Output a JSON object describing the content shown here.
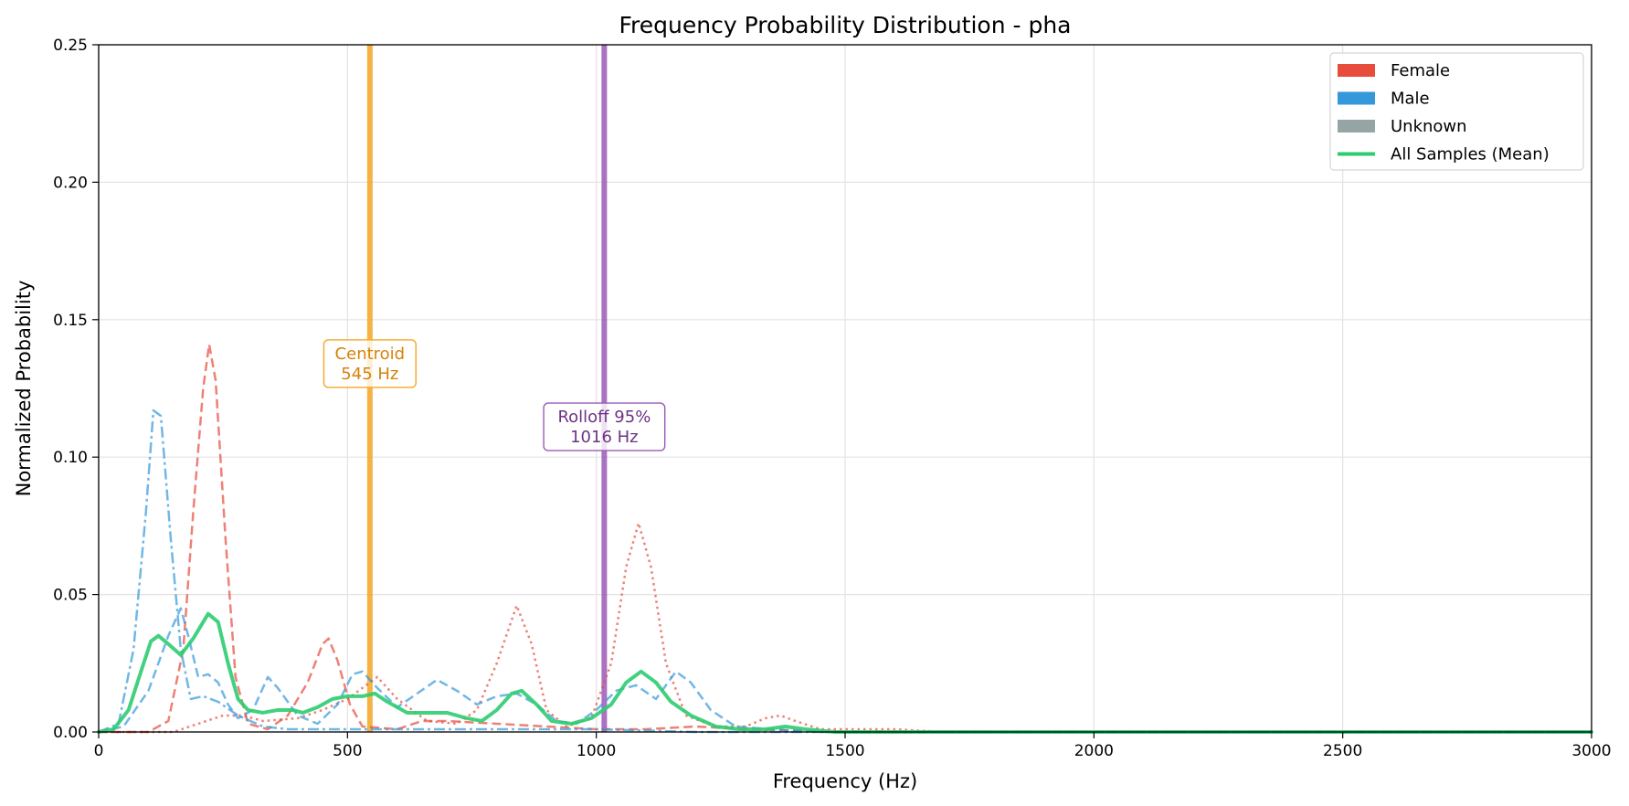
{
  "chart_data": {
    "type": "line",
    "title": "Frequency Probability Distribution - pha",
    "xlabel": "Frequency (Hz)",
    "ylabel": "Normalized Probability",
    "xlim": [
      0,
      3000
    ],
    "ylim": [
      0,
      0.25
    ],
    "xticks": [
      0,
      500,
      1000,
      1500,
      2000,
      2500,
      3000
    ],
    "xtick_labels": [
      "0",
      "500",
      "1000",
      "1500",
      "2000",
      "2500",
      "3000"
    ],
    "yticks": [
      0,
      0.05,
      0.1,
      0.15,
      0.2,
      0.25
    ],
    "ytick_labels": [
      "0.00",
      "0.05",
      "0.10",
      "0.15",
      "0.20",
      "0.25"
    ],
    "grid": true,
    "legend_position": "top-right",
    "legend": [
      {
        "label": "Female",
        "kind": "patch",
        "color": "#e74c3c"
      },
      {
        "label": "Male",
        "kind": "patch",
        "color": "#3498db"
      },
      {
        "label": "Unknown",
        "kind": "patch",
        "color": "#95a5a6"
      },
      {
        "label": "All Samples (Mean)",
        "kind": "line",
        "color": "#2ecc71"
      }
    ],
    "vlines": [
      {
        "x": 545,
        "color": "#f5a623",
        "text_color": "#d4830b",
        "label_lines": [
          "Centroid",
          "545 Hz"
        ],
        "label_y": 0.134
      },
      {
        "x": 1016,
        "color": "#9b59b6",
        "text_color": "#6c3483",
        "label_lines": [
          "Rolloff 95%",
          "1016 Hz"
        ],
        "label_y": 0.111
      }
    ],
    "series": [
      {
        "color": "#e74c3c",
        "dash": "dashed",
        "width": 2.5,
        "opacity": 0.7,
        "points": [
          [
            0,
            0
          ],
          [
            100,
            0
          ],
          [
            140,
            0.004
          ],
          [
            170,
            0.03
          ],
          [
            190,
            0.08
          ],
          [
            210,
            0.125
          ],
          [
            222,
            0.141
          ],
          [
            235,
            0.128
          ],
          [
            255,
            0.07
          ],
          [
            275,
            0.02
          ],
          [
            300,
            0.003
          ],
          [
            340,
            0.001
          ],
          [
            380,
            0.006
          ],
          [
            420,
            0.018
          ],
          [
            450,
            0.032
          ],
          [
            462,
            0.034
          ],
          [
            480,
            0.026
          ],
          [
            505,
            0.01
          ],
          [
            530,
            0.002
          ],
          [
            600,
            0.001
          ],
          [
            650,
            0.004
          ],
          [
            700,
            0.004
          ],
          [
            800,
            0.003
          ],
          [
            900,
            0.002
          ],
          [
            1000,
            0.001
          ],
          [
            1100,
            0.001
          ],
          [
            1200,
            0.002
          ],
          [
            1300,
            0.001
          ],
          [
            1500,
            0
          ],
          [
            3000,
            0
          ]
        ]
      },
      {
        "color": "#e74c3c",
        "dash": "dotted",
        "width": 2.5,
        "opacity": 0.7,
        "points": [
          [
            0,
            0
          ],
          [
            150,
            0
          ],
          [
            200,
            0.003
          ],
          [
            250,
            0.006
          ],
          [
            290,
            0.006
          ],
          [
            330,
            0.004
          ],
          [
            400,
            0.005
          ],
          [
            450,
            0.008
          ],
          [
            500,
            0.012
          ],
          [
            560,
            0.02
          ],
          [
            600,
            0.012
          ],
          [
            660,
            0.004
          ],
          [
            720,
            0.003
          ],
          [
            760,
            0.008
          ],
          [
            800,
            0.025
          ],
          [
            840,
            0.046
          ],
          [
            870,
            0.032
          ],
          [
            900,
            0.008
          ],
          [
            940,
            0.002
          ],
          [
            990,
            0.005
          ],
          [
            1030,
            0.025
          ],
          [
            1060,
            0.06
          ],
          [
            1085,
            0.076
          ],
          [
            1110,
            0.06
          ],
          [
            1140,
            0.025
          ],
          [
            1180,
            0.006
          ],
          [
            1240,
            0.002
          ],
          [
            1300,
            0.002
          ],
          [
            1340,
            0.005
          ],
          [
            1370,
            0.006
          ],
          [
            1400,
            0.004
          ],
          [
            1450,
            0.001
          ],
          [
            1550,
            0.001
          ],
          [
            1600,
            0.001
          ],
          [
            1700,
            0
          ],
          [
            3000,
            0
          ]
        ]
      },
      {
        "color": "#3498db",
        "dash": "dashdot",
        "width": 2.5,
        "opacity": 0.7,
        "points": [
          [
            0,
            0
          ],
          [
            40,
            0.003
          ],
          [
            70,
            0.03
          ],
          [
            95,
            0.08
          ],
          [
            110,
            0.117
          ],
          [
            125,
            0.115
          ],
          [
            145,
            0.07
          ],
          [
            165,
            0.03
          ],
          [
            185,
            0.012
          ],
          [
            210,
            0.013
          ],
          [
            240,
            0.011
          ],
          [
            280,
            0.006
          ],
          [
            330,
            0.002
          ],
          [
            380,
            0.001
          ],
          [
            500,
            0.001
          ],
          [
            1000,
            0.001
          ],
          [
            1200,
            0
          ],
          [
            3000,
            0
          ]
        ]
      },
      {
        "color": "#3498db",
        "dash": "dashed",
        "width": 2.5,
        "opacity": 0.7,
        "points": [
          [
            0,
            0
          ],
          [
            50,
            0.002
          ],
          [
            100,
            0.015
          ],
          [
            140,
            0.035
          ],
          [
            165,
            0.045
          ],
          [
            180,
            0.035
          ],
          [
            200,
            0.02
          ],
          [
            220,
            0.021
          ],
          [
            240,
            0.018
          ],
          [
            260,
            0.01
          ],
          [
            280,
            0.005
          ],
          [
            310,
            0.008
          ],
          [
            340,
            0.02
          ],
          [
            360,
            0.016
          ],
          [
            400,
            0.006
          ],
          [
            440,
            0.003
          ],
          [
            480,
            0.01
          ],
          [
            510,
            0.021
          ],
          [
            530,
            0.022
          ],
          [
            560,
            0.016
          ],
          [
            600,
            0.009
          ],
          [
            640,
            0.014
          ],
          [
            680,
            0.019
          ],
          [
            720,
            0.015
          ],
          [
            760,
            0.01
          ],
          [
            800,
            0.013
          ],
          [
            840,
            0.014
          ],
          [
            880,
            0.01
          ],
          [
            920,
            0.004
          ],
          [
            960,
            0.003
          ],
          [
            1000,
            0.008
          ],
          [
            1040,
            0.015
          ],
          [
            1080,
            0.017
          ],
          [
            1120,
            0.012
          ],
          [
            1160,
            0.022
          ],
          [
            1190,
            0.018
          ],
          [
            1230,
            0.008
          ],
          [
            1280,
            0.002
          ],
          [
            1350,
            0.001
          ],
          [
            1450,
            0
          ],
          [
            3000,
            0
          ]
        ]
      },
      {
        "color": "#2ecc71",
        "dash": "solid",
        "width": 4,
        "opacity": 0.9,
        "points": [
          [
            0,
            0
          ],
          [
            30,
            0.001
          ],
          [
            60,
            0.008
          ],
          [
            85,
            0.022
          ],
          [
            105,
            0.033
          ],
          [
            120,
            0.035
          ],
          [
            140,
            0.032
          ],
          [
            165,
            0.028
          ],
          [
            190,
            0.034
          ],
          [
            220,
            0.043
          ],
          [
            240,
            0.04
          ],
          [
            260,
            0.025
          ],
          [
            280,
            0.012
          ],
          [
            300,
            0.008
          ],
          [
            330,
            0.007
          ],
          [
            360,
            0.008
          ],
          [
            390,
            0.008
          ],
          [
            410,
            0.007
          ],
          [
            440,
            0.009
          ],
          [
            470,
            0.012
          ],
          [
            500,
            0.013
          ],
          [
            530,
            0.013
          ],
          [
            555,
            0.014
          ],
          [
            580,
            0.011
          ],
          [
            620,
            0.007
          ],
          [
            660,
            0.007
          ],
          [
            700,
            0.007
          ],
          [
            740,
            0.005
          ],
          [
            770,
            0.004
          ],
          [
            800,
            0.008
          ],
          [
            830,
            0.014
          ],
          [
            850,
            0.015
          ],
          [
            880,
            0.01
          ],
          [
            910,
            0.004
          ],
          [
            950,
            0.003
          ],
          [
            990,
            0.005
          ],
          [
            1030,
            0.01
          ],
          [
            1060,
            0.018
          ],
          [
            1090,
            0.022
          ],
          [
            1120,
            0.018
          ],
          [
            1150,
            0.011
          ],
          [
            1190,
            0.006
          ],
          [
            1240,
            0.002
          ],
          [
            1290,
            0.001
          ],
          [
            1340,
            0.001
          ],
          [
            1380,
            0.002
          ],
          [
            1420,
            0.001
          ],
          [
            1480,
            0
          ],
          [
            1600,
            0
          ],
          [
            3000,
            0
          ]
        ]
      }
    ]
  }
}
